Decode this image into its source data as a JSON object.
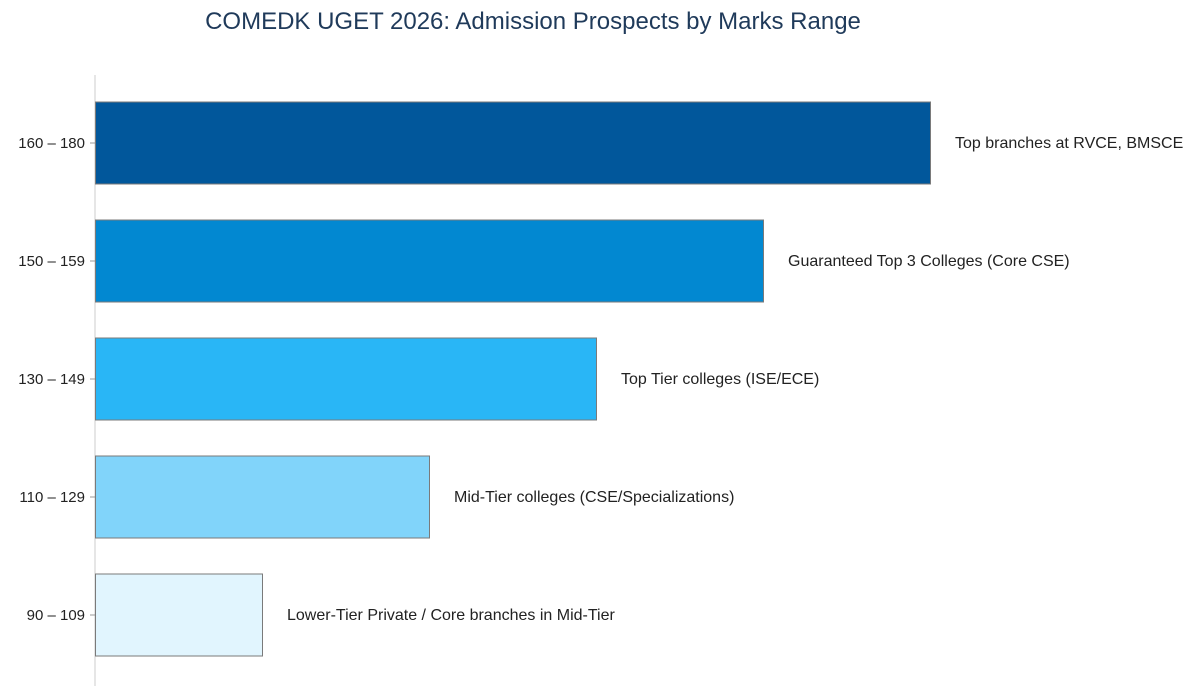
{
  "chart_data": {
    "type": "bar",
    "orientation": "horizontal",
    "title": "COMEDK UGET 2026: Admission Prospects by Marks Range",
    "xlabel": "",
    "ylabel": "",
    "categories": [
      "160 – 180",
      "150 – 159",
      "130 – 149",
      "110 – 129",
      "90 – 109"
    ],
    "values": [
      5,
      4,
      3,
      2,
      1
    ],
    "xlim": [
      0,
      5
    ],
    "bar_labels": [
      "Top branches at RVCE, BMSCE",
      "Guaranteed Top 3 Colleges (Core CSE)",
      "Top Tier colleges (ISE/ECE)",
      "Mid-Tier colleges (CSE/Specializations)",
      "Lower-Tier Private / Core branches in Mid-Tier"
    ],
    "colors": [
      "#01579b",
      "#0288d1",
      "#29b6f6",
      "#81d4fa",
      "#e1f5fe"
    ],
    "grid": false,
    "legend": "none"
  }
}
